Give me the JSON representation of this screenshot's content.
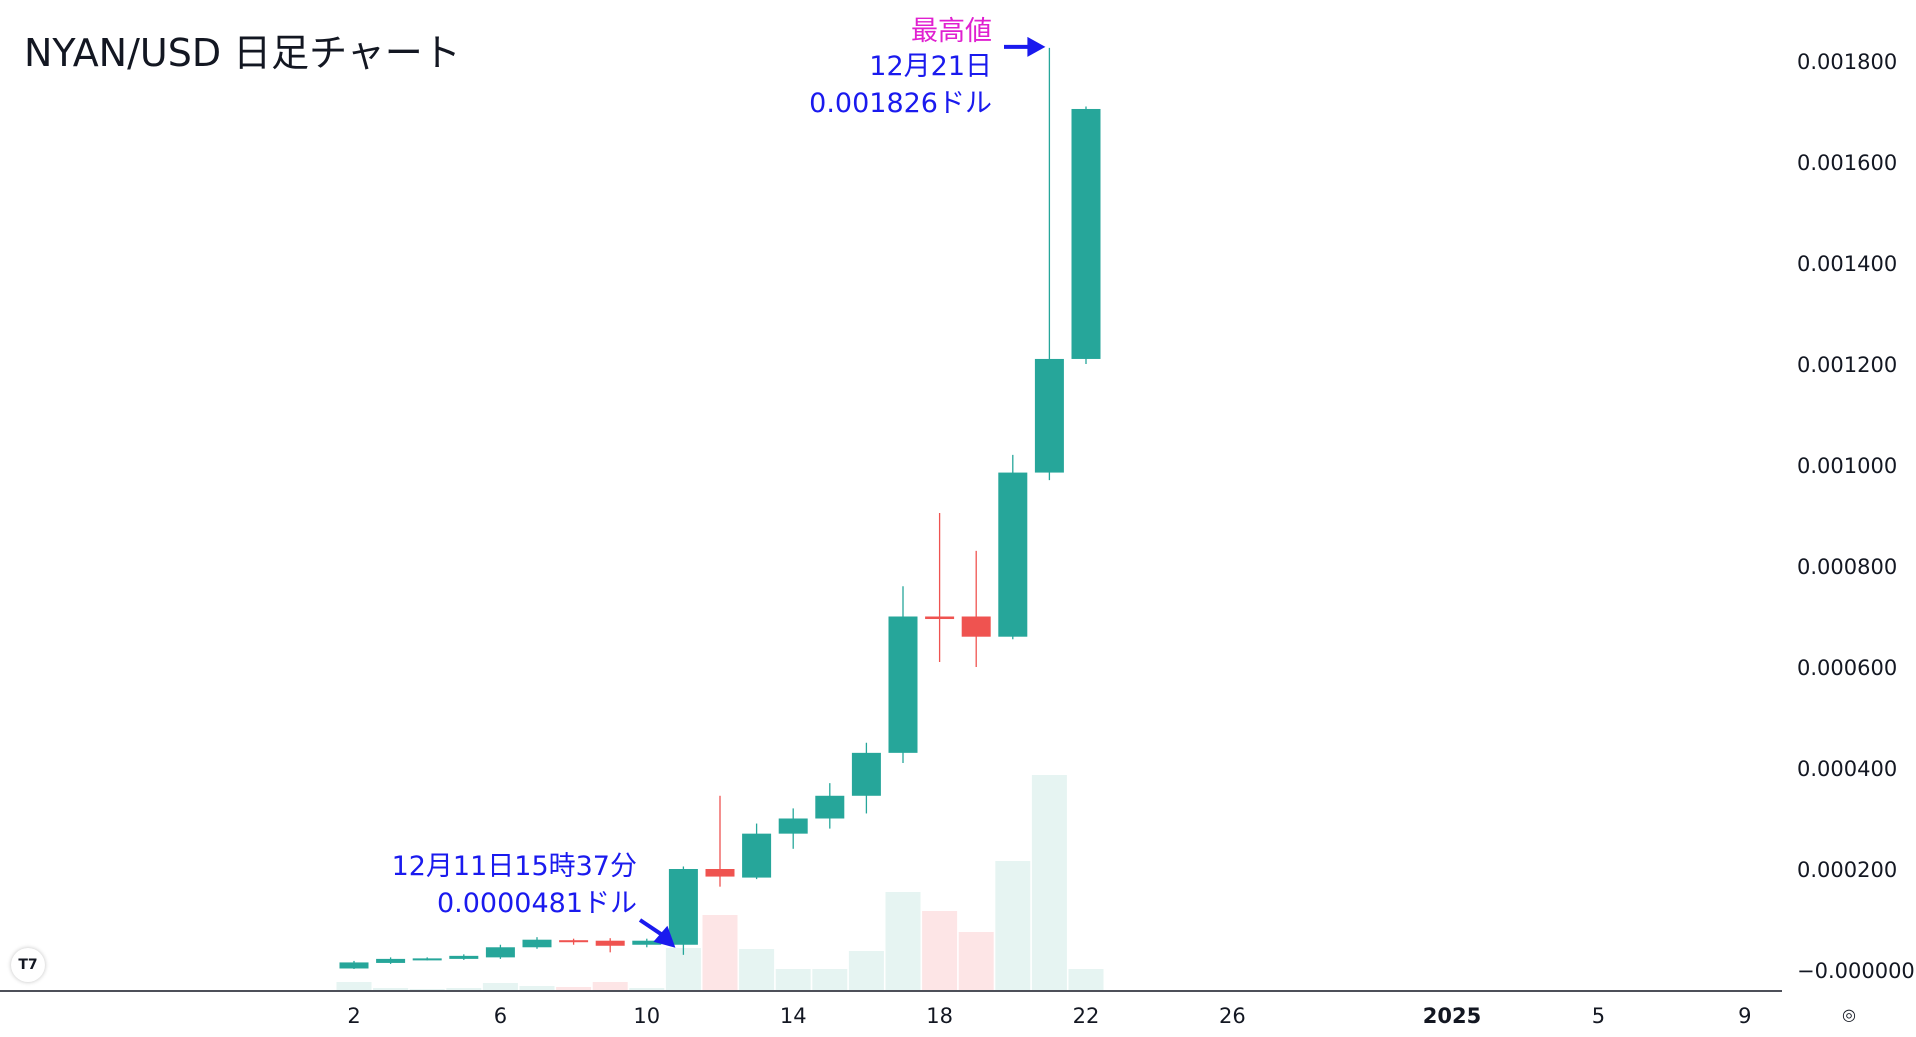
{
  "title": "NYAN/USD 日足チャート",
  "colors": {
    "up": "#26a69a",
    "down": "#ef5350",
    "volume_up": "#e6f4f2",
    "volume_down": "#fde5e6",
    "ath_label": "#e020d0",
    "annotation": "#1a1aee",
    "axis": "#131722"
  },
  "chart_data": {
    "type": "candlestick",
    "title": "NYAN/USD 日足チャート",
    "ylim": [
      -2e-05,
      0.00188
    ],
    "y_ticks": [
      "0.001800",
      "0.001600",
      "0.001400",
      "0.001200",
      "0.001000",
      "0.000800",
      "0.000600",
      "0.000400",
      "0.000200",
      "−0.000000"
    ],
    "y_tick_values": [
      0.0018,
      0.0016,
      0.0014,
      0.0012,
      0.001,
      0.0008,
      0.0006,
      0.0004,
      0.0002,
      0
    ],
    "x_ticks": [
      {
        "day": 2,
        "label": "2",
        "bold": false
      },
      {
        "day": 6,
        "label": "6",
        "bold": false
      },
      {
        "day": 10,
        "label": "10",
        "bold": false
      },
      {
        "day": 14,
        "label": "14",
        "bold": false
      },
      {
        "day": 18,
        "label": "18",
        "bold": false
      },
      {
        "day": 22,
        "label": "22",
        "bold": false
      },
      {
        "day": 26,
        "label": "26",
        "bold": false
      },
      {
        "day": 32,
        "label": "2025",
        "bold": true
      },
      {
        "day": 36,
        "label": "5",
        "bold": false
      },
      {
        "day": 40,
        "label": "9",
        "bold": false
      }
    ],
    "candles": [
      {
        "day": 2,
        "open": 3e-06,
        "close": 1.5e-05,
        "high": 1.8e-05,
        "low": 2e-06
      },
      {
        "day": 3,
        "open": 1.4e-05,
        "close": 2.2e-05,
        "high": 2.5e-05,
        "low": 1.2e-05
      },
      {
        "day": 4,
        "open": 2.1e-05,
        "close": 2.3e-05,
        "high": 2.5e-05,
        "low": 1.9e-05
      },
      {
        "day": 5,
        "open": 2.2e-05,
        "close": 2.8e-05,
        "high": 3.1e-05,
        "low": 2e-05
      },
      {
        "day": 6,
        "open": 2.5e-05,
        "close": 4.5e-05,
        "high": 5e-05,
        "low": 2.2e-05
      },
      {
        "day": 7,
        "open": 4.5e-05,
        "close": 6e-05,
        "high": 6.5e-05,
        "low": 4.2e-05
      },
      {
        "day": 8,
        "open": 5.9e-05,
        "close": 5.5e-05,
        "high": 6.2e-05,
        "low": 5e-05
      },
      {
        "day": 9,
        "open": 5.8e-05,
        "close": 4.8e-05,
        "high": 6.3e-05,
        "low": 3.5e-05
      },
      {
        "day": 10,
        "open": 5e-05,
        "close": 5.8e-05,
        "high": 6.2e-05,
        "low": 4.5e-05
      },
      {
        "day": 11,
        "open": 5e-05,
        "close": 0.0002,
        "high": 0.000205,
        "low": 3e-05
      },
      {
        "day": 12,
        "open": 0.0002,
        "close": 0.000185,
        "high": 0.000345,
        "low": 0.000165
      },
      {
        "day": 13,
        "open": 0.000183,
        "close": 0.00027,
        "high": 0.00029,
        "low": 0.00018
      },
      {
        "day": 14,
        "open": 0.00027,
        "close": 0.0003,
        "high": 0.00032,
        "low": 0.00024
      },
      {
        "day": 15,
        "open": 0.0003,
        "close": 0.000345,
        "high": 0.00037,
        "low": 0.00028
      },
      {
        "day": 16,
        "open": 0.000345,
        "close": 0.00043,
        "high": 0.00045,
        "low": 0.00031
      },
      {
        "day": 17,
        "open": 0.00043,
        "close": 0.0007,
        "high": 0.00076,
        "low": 0.00041
      },
      {
        "day": 18,
        "open": 0.0007,
        "close": 0.000695,
        "high": 0.000905,
        "low": 0.00061
      },
      {
        "day": 19,
        "open": 0.0007,
        "close": 0.00066,
        "high": 0.00083,
        "low": 0.0006
      },
      {
        "day": 20,
        "open": 0.00066,
        "close": 0.000985,
        "high": 0.00102,
        "low": 0.000655
      },
      {
        "day": 21,
        "open": 0.000985,
        "close": 0.00121,
        "high": 0.001826,
        "low": 0.00097
      },
      {
        "day": 22,
        "open": 0.00121,
        "close": 0.001705,
        "high": 0.00171,
        "low": 0.0012
      }
    ],
    "volumes": [
      {
        "day": 2,
        "value": 0.08,
        "up": true
      },
      {
        "day": 3,
        "value": 0.02,
        "up": true
      },
      {
        "day": 4,
        "value": 0.01,
        "up": true
      },
      {
        "day": 5,
        "value": 0.02,
        "up": true
      },
      {
        "day": 6,
        "value": 0.07,
        "up": true
      },
      {
        "day": 7,
        "value": 0.04,
        "up": true
      },
      {
        "day": 8,
        "value": 0.03,
        "up": false
      },
      {
        "day": 9,
        "value": 0.08,
        "up": false
      },
      {
        "day": 10,
        "value": 0.02,
        "up": true
      },
      {
        "day": 11,
        "value": 0.42,
        "up": true
      },
      {
        "day": 12,
        "value": 0.75,
        "up": false
      },
      {
        "day": 13,
        "value": 0.41,
        "up": true
      },
      {
        "day": 14,
        "value": 0.21,
        "up": true
      },
      {
        "day": 15,
        "value": 0.21,
        "up": true
      },
      {
        "day": 16,
        "value": 0.39,
        "up": true
      },
      {
        "day": 17,
        "value": 0.98,
        "up": true
      },
      {
        "day": 18,
        "value": 0.79,
        "up": false
      },
      {
        "day": 19,
        "value": 0.58,
        "up": false
      },
      {
        "day": 20,
        "value": 1.29,
        "up": true
      },
      {
        "day": 21,
        "value": 2.15,
        "up": true
      },
      {
        "day": 22,
        "value": 0.21,
        "up": true
      }
    ],
    "annotations": {
      "ath": {
        "label": "最高値",
        "date": "12月21日",
        "price": "0.001826ドル",
        "day": 21,
        "value": 0.001826
      },
      "low": {
        "date": "12月11日15時37分",
        "price": "0.0000481ドル",
        "day": 11,
        "value": 4.81e-05
      }
    }
  },
  "logo_text": "T7",
  "settings_icon": "◎"
}
